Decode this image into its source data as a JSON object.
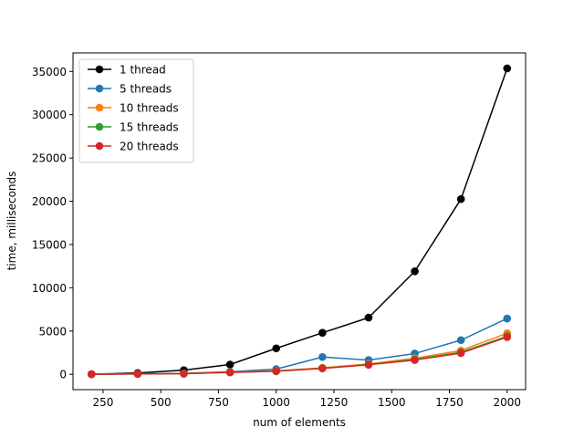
{
  "chart_data": {
    "type": "line",
    "xlabel": "num of elements",
    "ylabel": "time, milliseconds",
    "xlim": [
      120,
      2080
    ],
    "ylim": [
      -1770,
      37140
    ],
    "x_ticks": [
      250,
      500,
      750,
      1000,
      1250,
      1500,
      1750,
      2000
    ],
    "y_ticks": [
      0,
      5000,
      10000,
      15000,
      20000,
      25000,
      30000,
      35000
    ],
    "x": [
      200,
      400,
      600,
      800,
      1000,
      1200,
      1400,
      1600,
      1800,
      2000
    ],
    "grid": false,
    "legend_position": "top-left",
    "series": [
      {
        "name": "1 thread",
        "color": "#000000",
        "values": [
          20,
          150,
          480,
          1130,
          3000,
          4800,
          6550,
          11900,
          20250,
          35350
        ]
      },
      {
        "name": "5 threads",
        "color": "#1f77b4",
        "values": [
          10,
          60,
          120,
          300,
          600,
          2000,
          1650,
          2400,
          3950,
          6450
        ]
      },
      {
        "name": "10 threads",
        "color": "#ff7f0e",
        "values": [
          10,
          50,
          90,
          250,
          400,
          750,
          1200,
          1850,
          2750,
          4750
        ]
      },
      {
        "name": "15 threads",
        "color": "#2ca02c",
        "values": [
          10,
          50,
          80,
          230,
          380,
          700,
          1130,
          1720,
          2550,
          4400
        ]
      },
      {
        "name": "20 threads",
        "color": "#d62728",
        "values": [
          10,
          40,
          70,
          220,
          350,
          680,
          1100,
          1650,
          2450,
          4300
        ]
      }
    ]
  }
}
